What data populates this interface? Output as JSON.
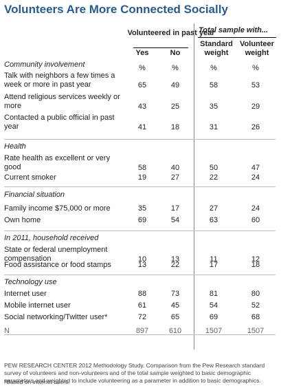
{
  "title": "Volunteers Are More Connected Socially",
  "headers": {
    "volunteered": "Volunteered in past year",
    "total_sample": "Total sample with...",
    "yes": "Yes",
    "no": "No",
    "standard_weight": "Standard weight",
    "volunteer_weight": "Volunteer weight"
  },
  "sections": [
    {
      "name": "Community involvement",
      "units": [
        "%",
        "%",
        "%",
        "%"
      ],
      "rows": [
        {
          "label": "Talk with neighbors a few times a week or more in past year",
          "values": [
            "65",
            "49",
            "58",
            "53"
          ]
        },
        {
          "label": "Attend religious services weekly or more",
          "values": [
            "43",
            "25",
            "35",
            "29"
          ]
        },
        {
          "label": "Contacted a public official in past year",
          "values": [
            "41",
            "18",
            "31",
            "26"
          ]
        }
      ]
    },
    {
      "name": "Health",
      "rows": [
        {
          "label": "Rate health as excellent or very good",
          "values": [
            "58",
            "40",
            "50",
            "47"
          ]
        },
        {
          "label": "Current smoker",
          "values": [
            "19",
            "27",
            "22",
            "24"
          ]
        }
      ]
    },
    {
      "name": "Financial situation",
      "rows": [
        {
          "label": "Family income $75,000 or more",
          "values": [
            "35",
            "17",
            "27",
            "24"
          ]
        },
        {
          "label": "Own home",
          "values": [
            "69",
            "54",
            "63",
            "60"
          ]
        }
      ]
    },
    {
      "name": "In 2011, household received",
      "rows": [
        {
          "label": "State or federal unemployment compensation",
          "values": [
            "10",
            "13",
            "11",
            "12"
          ]
        },
        {
          "label": "Food assistance or food stamps",
          "values": [
            "13",
            "22",
            "17",
            "18"
          ]
        }
      ]
    },
    {
      "name": "Technology use",
      "rows": [
        {
          "label": "Internet user",
          "values": [
            "88",
            "73",
            "81",
            "80"
          ]
        },
        {
          "label": "Mobile internet user",
          "values": [
            "61",
            "45",
            "54",
            "52"
          ]
        },
        {
          "label": "Social networking/Twitter user*",
          "values": [
            "72",
            "65",
            "69",
            "68"
          ]
        }
      ]
    }
  ],
  "n_row": {
    "label": "N",
    "values": [
      "897",
      "610",
      "1507",
      "1507"
    ]
  },
  "footnote": "PEW RESEARCH CENTER 2012 Methodology Study. Comparison from the Pew Research standard survey of volunteers and non-volunteers and of the total sample weighted to basic demographic parameters and weighted to include volunteering as a parameter in addition to basic demographics.",
  "footnote2": "*Based on internet users."
}
